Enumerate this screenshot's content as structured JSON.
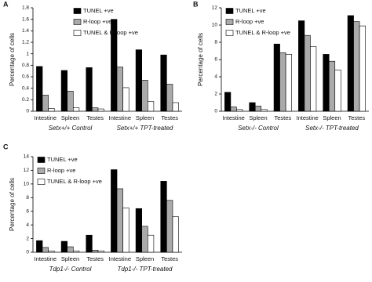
{
  "chart_data": [
    {
      "type": "bar",
      "label": "A",
      "ylabel": "Percentage of cells",
      "categories": [
        "Intestine",
        "Spleen",
        "Testes",
        "Intestine",
        "Spleen",
        "Testes"
      ],
      "groups": [
        "Setx+/+ Control",
        "Setx+/+ TPT-treated"
      ],
      "ylim": [
        0,
        1.8
      ],
      "yticks": [
        0,
        0.2,
        0.4,
        0.6,
        0.8,
        1,
        1.2,
        1.4,
        1.6,
        1.8
      ],
      "legend": "upper left",
      "edgecolor": "#000000",
      "series": [
        {
          "name": "TUNEL +ve",
          "color": "#000000",
          "values": [
            0.78,
            0.71,
            0.76,
            1.6,
            1.07,
            0.98
          ]
        },
        {
          "name": "R-loop +ve",
          "color": "#aaaaaa",
          "values": [
            0.28,
            0.35,
            0.06,
            0.77,
            0.54,
            0.47
          ]
        },
        {
          "name": "TUNEL & R-loop +ve",
          "color": "#ffffff",
          "values": [
            0.05,
            0.06,
            0.04,
            0.41,
            0.17,
            0.15
          ]
        }
      ]
    },
    {
      "type": "bar",
      "label": "B",
      "ylabel": "Percentage of cells",
      "categories": [
        "Intestine",
        "Spleen",
        "Testes",
        "Intestine",
        "Spleen",
        "Testes"
      ],
      "groups": [
        "Setx-/- Control",
        "Setx-/- TPT-treated"
      ],
      "ylim": [
        0,
        12
      ],
      "yticks": [
        0,
        2,
        4,
        6,
        8,
        10,
        12
      ],
      "legend": "upper left",
      "edgecolor": "#000000",
      "series": [
        {
          "name": "TUNEL +ve",
          "color": "#000000",
          "values": [
            2.2,
            1.0,
            7.8,
            10.5,
            6.6,
            11.1
          ]
        },
        {
          "name": "R-loop +ve",
          "color": "#aaaaaa",
          "values": [
            0.5,
            0.6,
            6.8,
            8.8,
            5.8,
            10.4
          ]
        },
        {
          "name": "TUNEL & R-loop +ve",
          "color": "#ffffff",
          "values": [
            0.2,
            0.2,
            6.6,
            7.5,
            4.8,
            9.9
          ]
        }
      ]
    },
    {
      "type": "bar",
      "label": "C",
      "ylabel": "Percentage of cells",
      "categories": [
        "Intestine",
        "Spleen",
        "Testes",
        "Intestine",
        "Spleen",
        "Testes"
      ],
      "groups": [
        "Tdp1-/- Control",
        "Tdp1-/- TPT-treated"
      ],
      "ylim": [
        0,
        14
      ],
      "yticks": [
        0,
        2,
        4,
        6,
        8,
        10,
        12,
        14
      ],
      "legend": "upper left",
      "edgecolor": "#000000",
      "series": [
        {
          "name": "TUNEL +ve",
          "color": "#000000",
          "values": [
            1.7,
            1.6,
            2.5,
            12.1,
            6.4,
            10.4
          ]
        },
        {
          "name": "R-loop +ve",
          "color": "#aaaaaa",
          "values": [
            0.7,
            0.8,
            0.3,
            9.3,
            3.8,
            7.6
          ]
        },
        {
          "name": "TUNEL & R-loop +ve",
          "color": "#ffffff",
          "values": [
            0.2,
            0.2,
            0.2,
            6.5,
            2.5,
            5.2
          ]
        }
      ]
    }
  ]
}
